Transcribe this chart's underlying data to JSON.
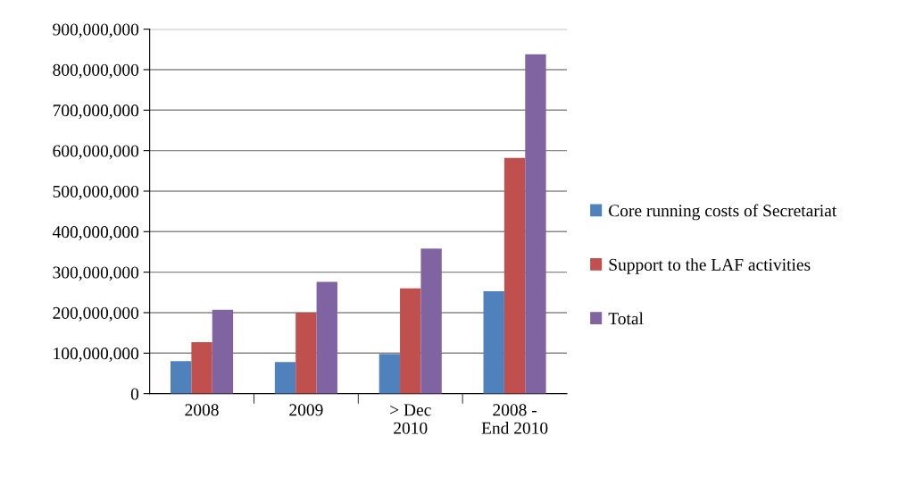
{
  "chart_data": {
    "type": "bar",
    "categories": [
      "2008",
      "2009",
      "> Dec\n2010",
      "2008 -\nEnd 2010"
    ],
    "series": [
      {
        "name": "Core running costs of Secretariat",
        "color": "#4f81bd",
        "values": [
          80000000,
          78000000,
          98000000,
          253000000
        ]
      },
      {
        "name": "Support to the LAF activities",
        "color": "#c0504d",
        "values": [
          127000000,
          200000000,
          260000000,
          582000000
        ]
      },
      {
        "name": "Total",
        "color": "#8064a2",
        "values": [
          207000000,
          276000000,
          358000000,
          838000000
        ]
      }
    ],
    "ylim": [
      0,
      900000000
    ],
    "yticks": [
      0,
      {
        "value": 100000000,
        "label": "100,000,000"
      },
      {
        "value": 200000000,
        "label": "200,000,000"
      },
      {
        "value": 300000000,
        "label": "300,000,000"
      },
      {
        "value": 400000000,
        "label": "400,000,000"
      },
      {
        "value": 500000000,
        "label": "500,000,000"
      },
      {
        "value": 600000000,
        "label": "600,000,000"
      },
      {
        "value": 700000000,
        "label": "700,000,000"
      },
      {
        "value": 800000000,
        "label": "800,000,000"
      },
      {
        "value": 900000000,
        "label": "900,000,000"
      }
    ],
    "grid": "y",
    "legend": "right"
  }
}
